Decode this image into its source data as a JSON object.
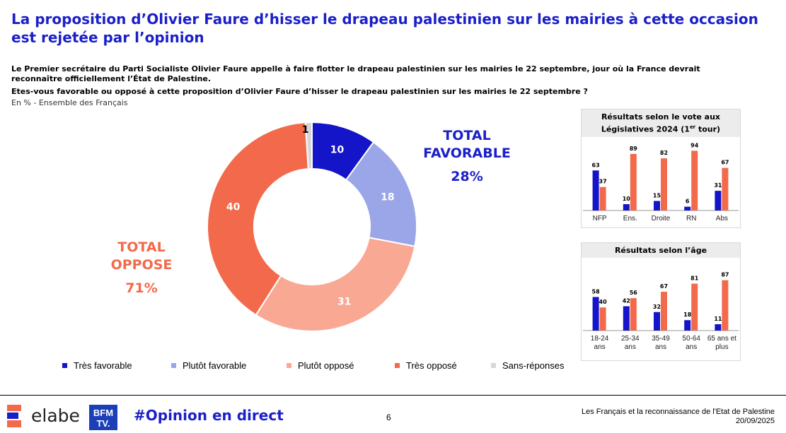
{
  "title": "La proposition d’Olivier Faure d’hisser le drapeau palestinien sur les mairies à cette occasion est rejetée par l’opinion",
  "intro": "Le Premier secrétaire du Parti Socialiste Olivier Faure appelle à faire flotter le drapeau palestinien sur les mairies le 22 septembre, jour où la France devrait reconnaître officiellement l’État de Palestine.",
  "question": "Etes-vous favorable ou opposé à cette proposition d’Olivier Faure d’hisser le drapeau palestinien sur les mairies le 22 septembre ?",
  "base": "En % - Ensemble des Français",
  "total_favorable": {
    "label_line1": "TOTAL",
    "label_line2": "FAVORABLE",
    "value": "28%"
  },
  "total_oppose": {
    "label_line1": "TOTAL",
    "label_line2": "OPPOSE",
    "value": "71%"
  },
  "colors": {
    "tres_favorable": "#1414c8",
    "plutot_favorable": "#9ba6e8",
    "plutot_oppose": "#f9a893",
    "tres_oppose": "#f26a4b",
    "sans_reponse": "#d6d6d6",
    "title_blue": "#1a1fc8"
  },
  "chart_data": [
    {
      "type": "pie",
      "categories": [
        "Très favorable",
        "Plutôt favorable",
        "Plutôt opposé",
        "Très opposé",
        "Sans-réponses"
      ],
      "values": [
        10,
        18,
        31,
        40,
        1
      ],
      "donut": true
    },
    {
      "type": "bar",
      "title": "Résultats selon le vote aux Législatives 2024 (1er tour)",
      "categories": [
        "NFP",
        "Ens.",
        "Droite",
        "RN",
        "Abs"
      ],
      "series": [
        {
          "name": "Total favorable",
          "values": [
            63,
            10,
            15,
            6,
            31
          ]
        },
        {
          "name": "Total opposé",
          "values": [
            37,
            89,
            82,
            94,
            67
          ]
        }
      ],
      "ylim": [
        0,
        100
      ]
    },
    {
      "type": "bar",
      "title": "Résultats selon l’âge",
      "categories": [
        "18-24 ans",
        "25-34 ans",
        "35-49 ans",
        "50-64 ans",
        "65 ans et plus"
      ],
      "series": [
        {
          "name": "Total favorable",
          "values": [
            58,
            42,
            32,
            18,
            11
          ]
        },
        {
          "name": "Total opposé",
          "values": [
            40,
            56,
            67,
            81,
            87
          ]
        }
      ],
      "ylim": [
        0,
        100
      ]
    }
  ],
  "panel_vote": {
    "title_main": "Résultats selon le vote aux Législatives 2024 (1",
    "title_sup": "er",
    "title_end": " tour)"
  },
  "panel_age": {
    "title": "Résultats selon l’âge"
  },
  "legend": [
    "Très favorable",
    "Plutôt favorable",
    "Plutôt opposé",
    "Très opposé",
    "Sans-réponses"
  ],
  "footer": {
    "brand": "elabe",
    "bfm_line1": "BFM",
    "bfm_line2": "TV.",
    "hashtag": "#Opinion en direct",
    "page": "6",
    "study": "Les Français et la reconnaissance de l'Etat de Palestine",
    "date": "20/09/2025"
  }
}
